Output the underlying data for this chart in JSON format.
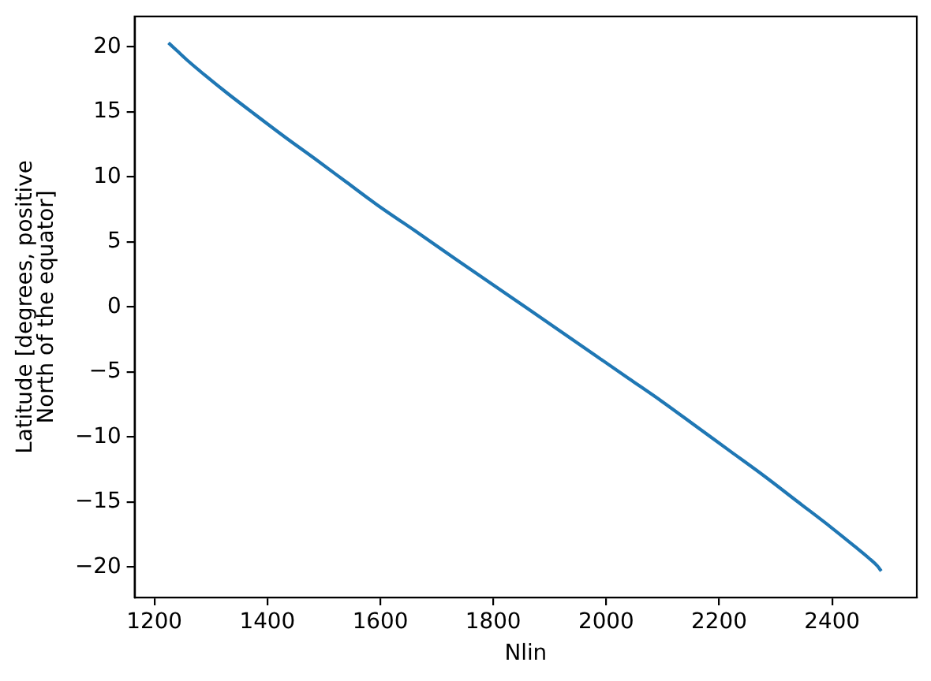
{
  "chart_data": {
    "type": "line",
    "xlabel": "Nlin",
    "ylabel": "Latitude [degrees, positive\nNorth of the equator]",
    "x": [
      1225,
      1240,
      1260,
      1290,
      1330,
      1372,
      1430,
      1484,
      1540,
      1596,
      1660,
      1736,
      1800,
      1860,
      1920,
      1980,
      2040,
      2100,
      2160,
      2220,
      2280,
      2340,
      2400,
      2440,
      2465,
      2480,
      2487
    ],
    "series": [
      {
        "color": "#1f77b4",
        "values": [
          20.3,
          19.7,
          18.9,
          17.8,
          16.4,
          15.0,
          13.1,
          11.4,
          9.6,
          7.8,
          5.9,
          3.6,
          1.7,
          -0.1,
          -1.9,
          -3.7,
          -5.5,
          -7.3,
          -9.2,
          -11.1,
          -13.0,
          -15.0,
          -17.0,
          -18.4,
          -19.3,
          -19.9,
          -20.3
        ]
      }
    ],
    "xlim": [
      1165,
      2550
    ],
    "ylim": [
      -22.33,
      22.33
    ],
    "xticks": [
      1200,
      1400,
      1600,
      1800,
      2000,
      2200,
      2400
    ],
    "yticks": [
      -20,
      -15,
      -10,
      -5,
      0,
      5,
      10,
      15,
      20
    ],
    "grid": false,
    "legend": false,
    "marker": "none",
    "line_style": "solid"
  }
}
